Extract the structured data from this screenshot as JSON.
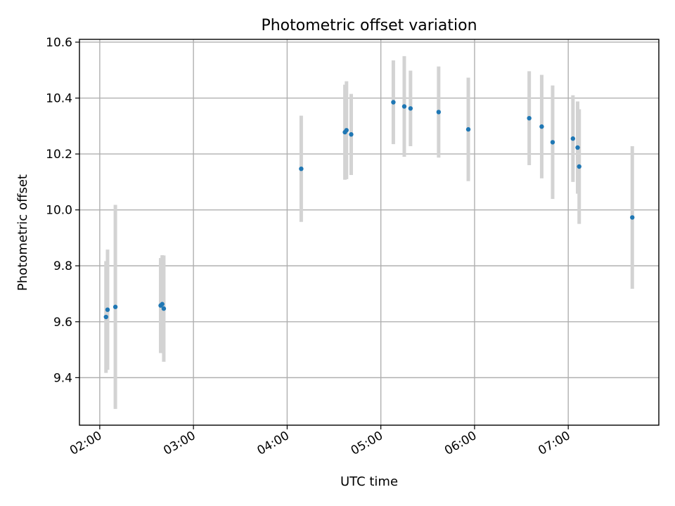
{
  "chart_data": {
    "type": "scatter",
    "title": "Photometric offset variation",
    "xlabel": "UTC time",
    "ylabel": "Photometric offset",
    "x_ticks": [
      "02:00",
      "03:00",
      "04:00",
      "05:00",
      "06:00",
      "07:00"
    ],
    "y_ticks": [
      "9.4",
      "9.6",
      "9.8",
      "10.0",
      "10.2",
      "10.4",
      "10.6"
    ],
    "xlim": [
      "01:47",
      "07:58"
    ],
    "ylim": [
      9.23,
      10.61
    ],
    "grid": true,
    "colors": {
      "points": "#1f77b4",
      "errorbars": "#d3d3d3",
      "grid": "#b0b0b0"
    },
    "series": [
      {
        "points": [
          {
            "x": "02:04",
            "y": 9.617,
            "err": 0.2
          },
          {
            "x": "02:05",
            "y": 9.643,
            "err": 0.215
          },
          {
            "x": "02:10",
            "y": 9.653,
            "err": 0.365
          },
          {
            "x": "02:39",
            "y": 9.658,
            "err": 0.17
          },
          {
            "x": "02:40",
            "y": 9.663,
            "err": 0.175
          },
          {
            "x": "02:41",
            "y": 9.647,
            "err": 0.19
          },
          {
            "x": "04:09",
            "y": 10.147,
            "err": 0.19
          },
          {
            "x": "04:37",
            "y": 10.278,
            "err": 0.17
          },
          {
            "x": "04:38",
            "y": 10.285,
            "err": 0.175
          },
          {
            "x": "04:41",
            "y": 10.27,
            "err": 0.145
          },
          {
            "x": "05:08",
            "y": 10.385,
            "err": 0.15
          },
          {
            "x": "05:15",
            "y": 10.37,
            "err": 0.18
          },
          {
            "x": "05:19",
            "y": 10.363,
            "err": 0.135
          },
          {
            "x": "05:37",
            "y": 10.35,
            "err": 0.163
          },
          {
            "x": "05:56",
            "y": 10.288,
            "err": 0.185
          },
          {
            "x": "06:35",
            "y": 10.328,
            "err": 0.168
          },
          {
            "x": "06:43",
            "y": 10.298,
            "err": 0.185
          },
          {
            "x": "06:50",
            "y": 10.242,
            "err": 0.203
          },
          {
            "x": "07:03",
            "y": 10.255,
            "err": 0.155
          },
          {
            "x": "07:06",
            "y": 10.223,
            "err": 0.165
          },
          {
            "x": "07:07",
            "y": 10.155,
            "err": 0.205
          },
          {
            "x": "07:41",
            "y": 9.973,
            "err": 0.255
          }
        ]
      }
    ]
  }
}
